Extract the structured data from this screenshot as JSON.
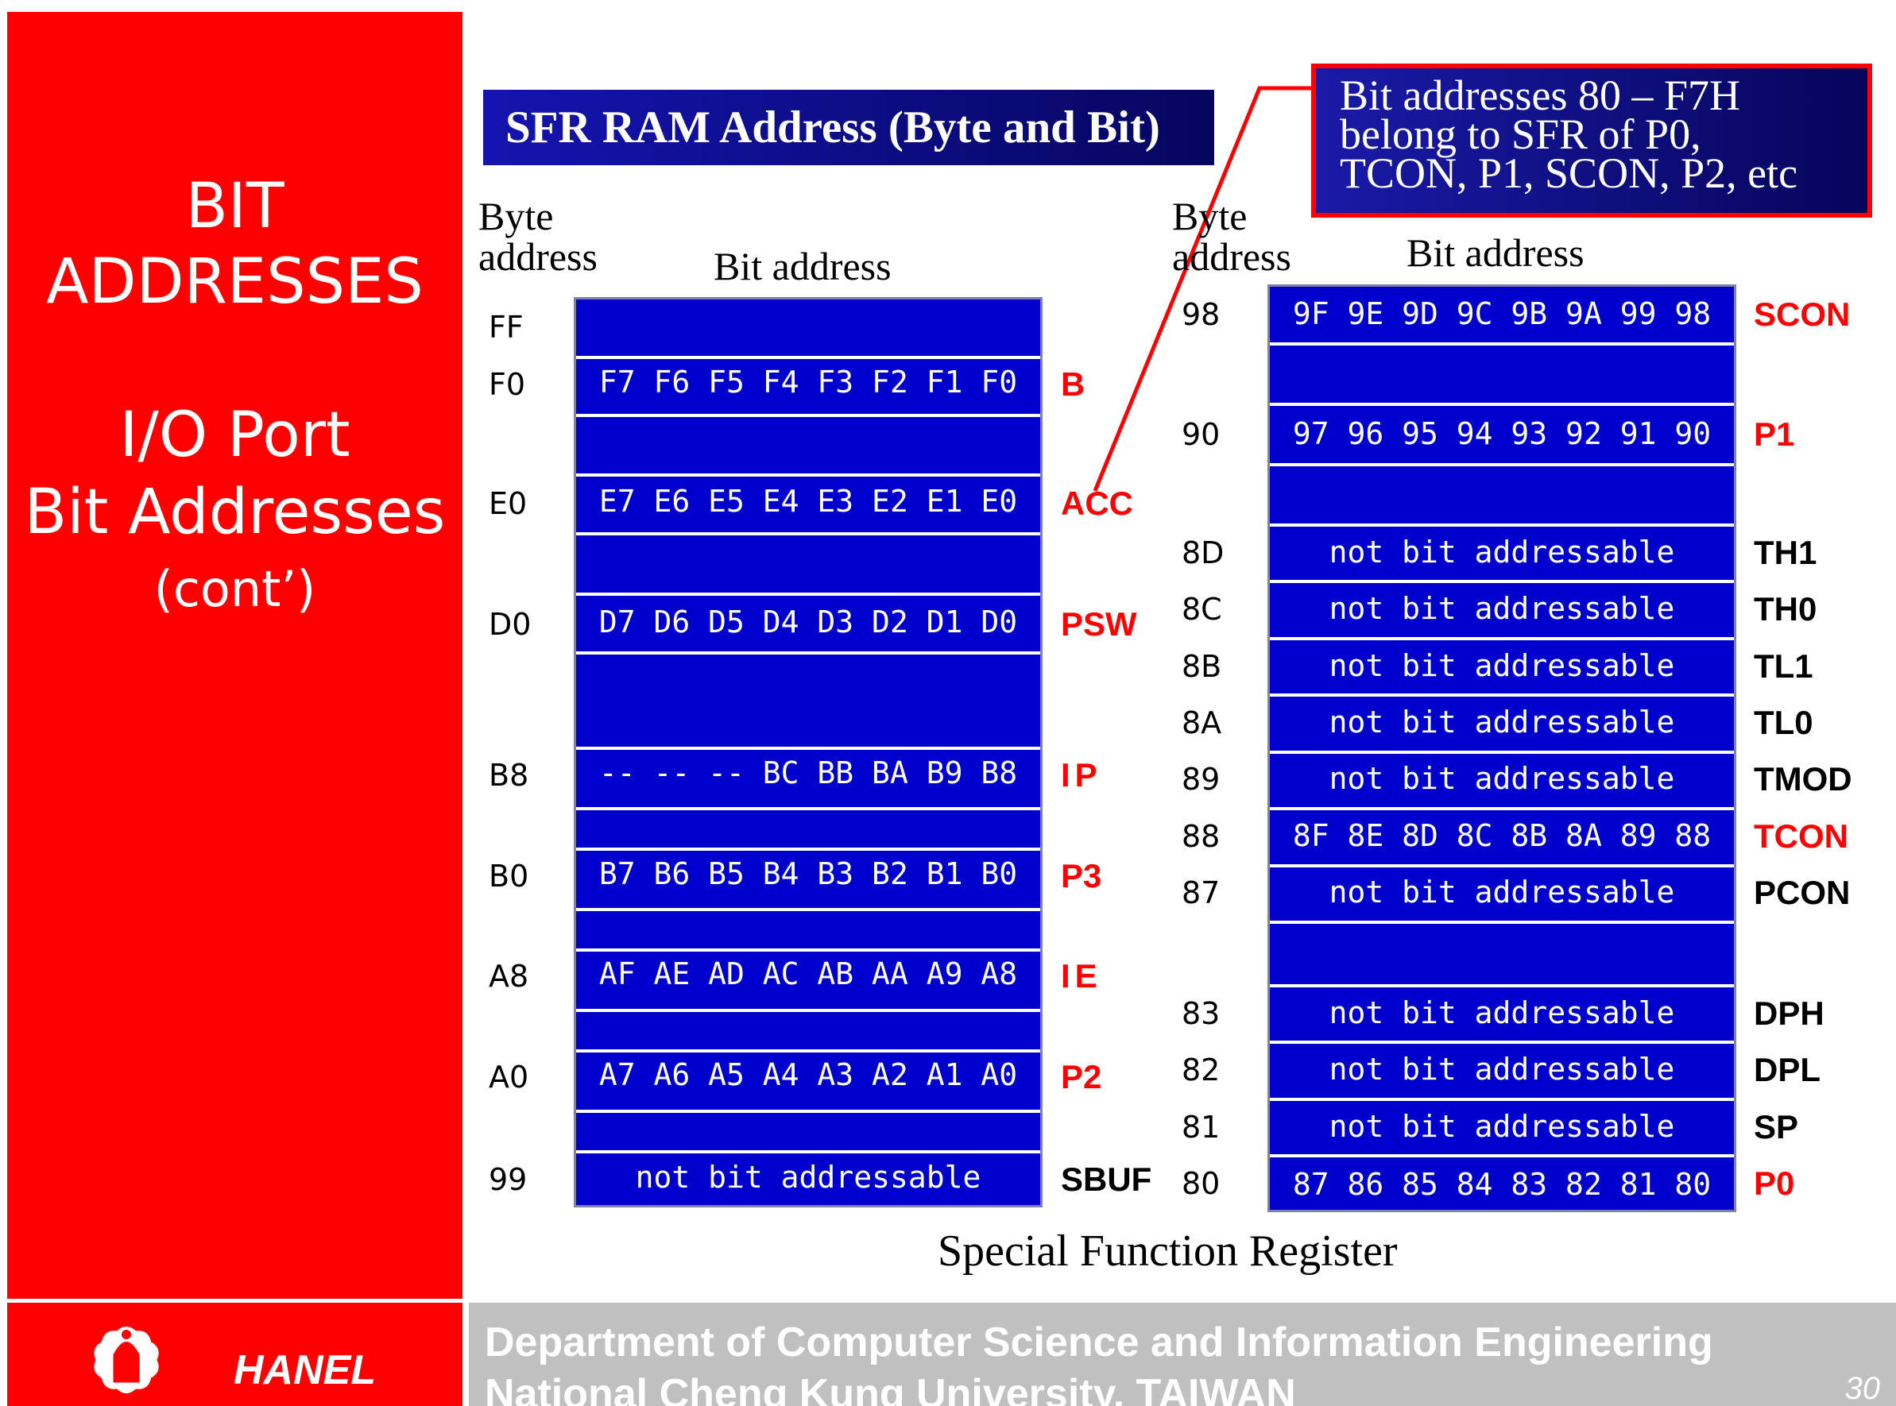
{
  "sidebar": {
    "lines": [
      "BIT",
      "ADDRESSES",
      "I/O Port",
      "Bit Addresses",
      "(cont’)"
    ]
  },
  "title": "SFR RAM Address (Byte and Bit)",
  "callout": {
    "lines": [
      "Bit addresses 80 – F7H",
      "belong to SFR of P0,",
      "TCON, P1, SCON, P2, etc"
    ]
  },
  "headers": {
    "byte_address_line1": "Byte",
    "byte_address_line2": "address",
    "bit_address": "Bit address"
  },
  "left_table": {
    "rows": [
      {
        "addr": "FF",
        "bits": "",
        "reg": ""
      },
      {
        "addr": "F0",
        "bits": "F7 F6 F5 F4 F3 F2 F1 F0",
        "reg": "B"
      },
      {
        "addr": "E0",
        "bits": "E7 E6 E5 E4 E3 E2 E1 E0",
        "reg": "ACC"
      },
      {
        "addr": "D0",
        "bits": "D7 D6 D5 D4 D3 D2 D1 D0",
        "reg": "PSW"
      },
      {
        "addr": "B8",
        "bits": "-- -- -- BC BB BA B9 B8",
        "reg": "IP"
      },
      {
        "addr": "B0",
        "bits": "B7 B6 B5 B4 B3 B2 B1 B0",
        "reg": "P3"
      },
      {
        "addr": "A8",
        "bits": "AF AE AD AC AB AA A9 A8",
        "reg": "IE"
      },
      {
        "addr": "A0",
        "bits": "A7 A6 A5 A4 A3 A2 A1 A0",
        "reg": "P2"
      },
      {
        "addr": "99",
        "bits": "not bit addressable",
        "reg": "SBUF"
      }
    ]
  },
  "right_table": {
    "rows": [
      {
        "addr": "98",
        "bits": "9F 9E 9D 9C 9B 9A 99 98",
        "reg": "SCON"
      },
      {
        "addr": "90",
        "bits": "97 96 95 94 93 92 91 90",
        "reg": "P1"
      },
      {
        "addr": "8D",
        "bits": "not bit addressable",
        "reg": "TH1"
      },
      {
        "addr": "8C",
        "bits": "not bit addressable",
        "reg": "TH0"
      },
      {
        "addr": "8B",
        "bits": "not bit addressable",
        "reg": "TL1"
      },
      {
        "addr": "8A",
        "bits": "not bit addressable",
        "reg": "TL0"
      },
      {
        "addr": "89",
        "bits": "not bit addressable",
        "reg": "TMOD"
      },
      {
        "addr": "88",
        "bits": "8F 8E 8D 8C 8B 8A 89 88",
        "reg": "TCON"
      },
      {
        "addr": "87",
        "bits": "not bit addressable",
        "reg": "PCON"
      },
      {
        "addr": "83",
        "bits": "not bit addressable",
        "reg": "DPH"
      },
      {
        "addr": "82",
        "bits": "not bit addressable",
        "reg": "DPL"
      },
      {
        "addr": "81",
        "bits": "not bit addressable",
        "reg": "SP"
      },
      {
        "addr": "80",
        "bits": "87 86 85 84 83 82 81 80",
        "reg": "P0"
      }
    ]
  },
  "caption": "Special Function Register",
  "footer": {
    "author": "HANEL",
    "line1": "Department of Computer Science and Information Engineering",
    "line2": "National Cheng Kung University, TAIWAN",
    "page": "30"
  },
  "colors": {
    "red": "#ff0000",
    "table_blue": "#0000cc",
    "footer_gray": "#c0c0c0"
  }
}
